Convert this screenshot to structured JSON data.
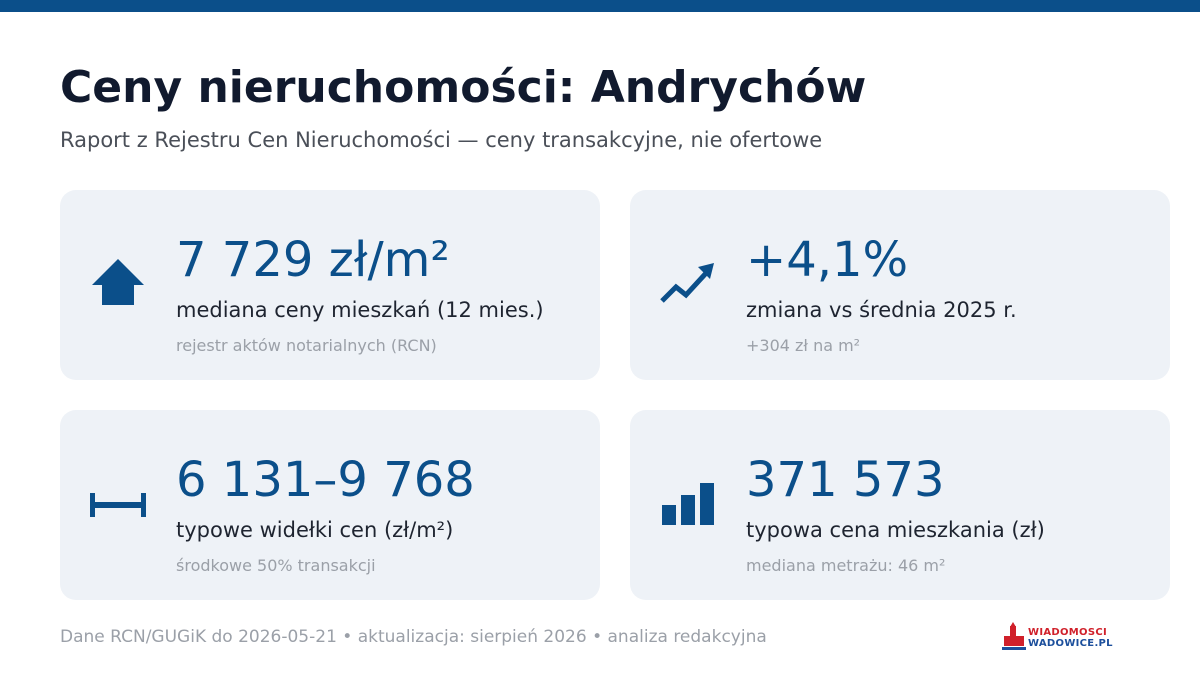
{
  "header": {
    "title": "Ceny nieruchomości: Andrychów",
    "subtitle": "Raport z Rejestru Cen Nieruchomości — ceny transakcyjne, nie ofertowe"
  },
  "cards": [
    {
      "value": "7 729 zł/m²",
      "label": "mediana ceny mieszkań (12 mies.)",
      "note": "rejestr aktów notarialnych (RCN)"
    },
    {
      "value": "+4,1%",
      "label": "zmiana vs średnia 2025 r.",
      "note": "+304 zł na m²"
    },
    {
      "value": "6 131–9 768",
      "label": "typowe widełki cen (zł/m²)",
      "note": "środkowe 50% transakcji"
    },
    {
      "value": "371 573",
      "label": "typowa cena mieszkania (zł)",
      "note": "mediana metrażu: 46 m²"
    }
  ],
  "footer": "Dane RCN/GUGiK do 2026-05-21 • aktualizacja: sierpień 2026 • analiza redakcyjna",
  "logo": {
    "line1": "WIADOMOSCI",
    "line2": "WADOWICE.PL"
  }
}
